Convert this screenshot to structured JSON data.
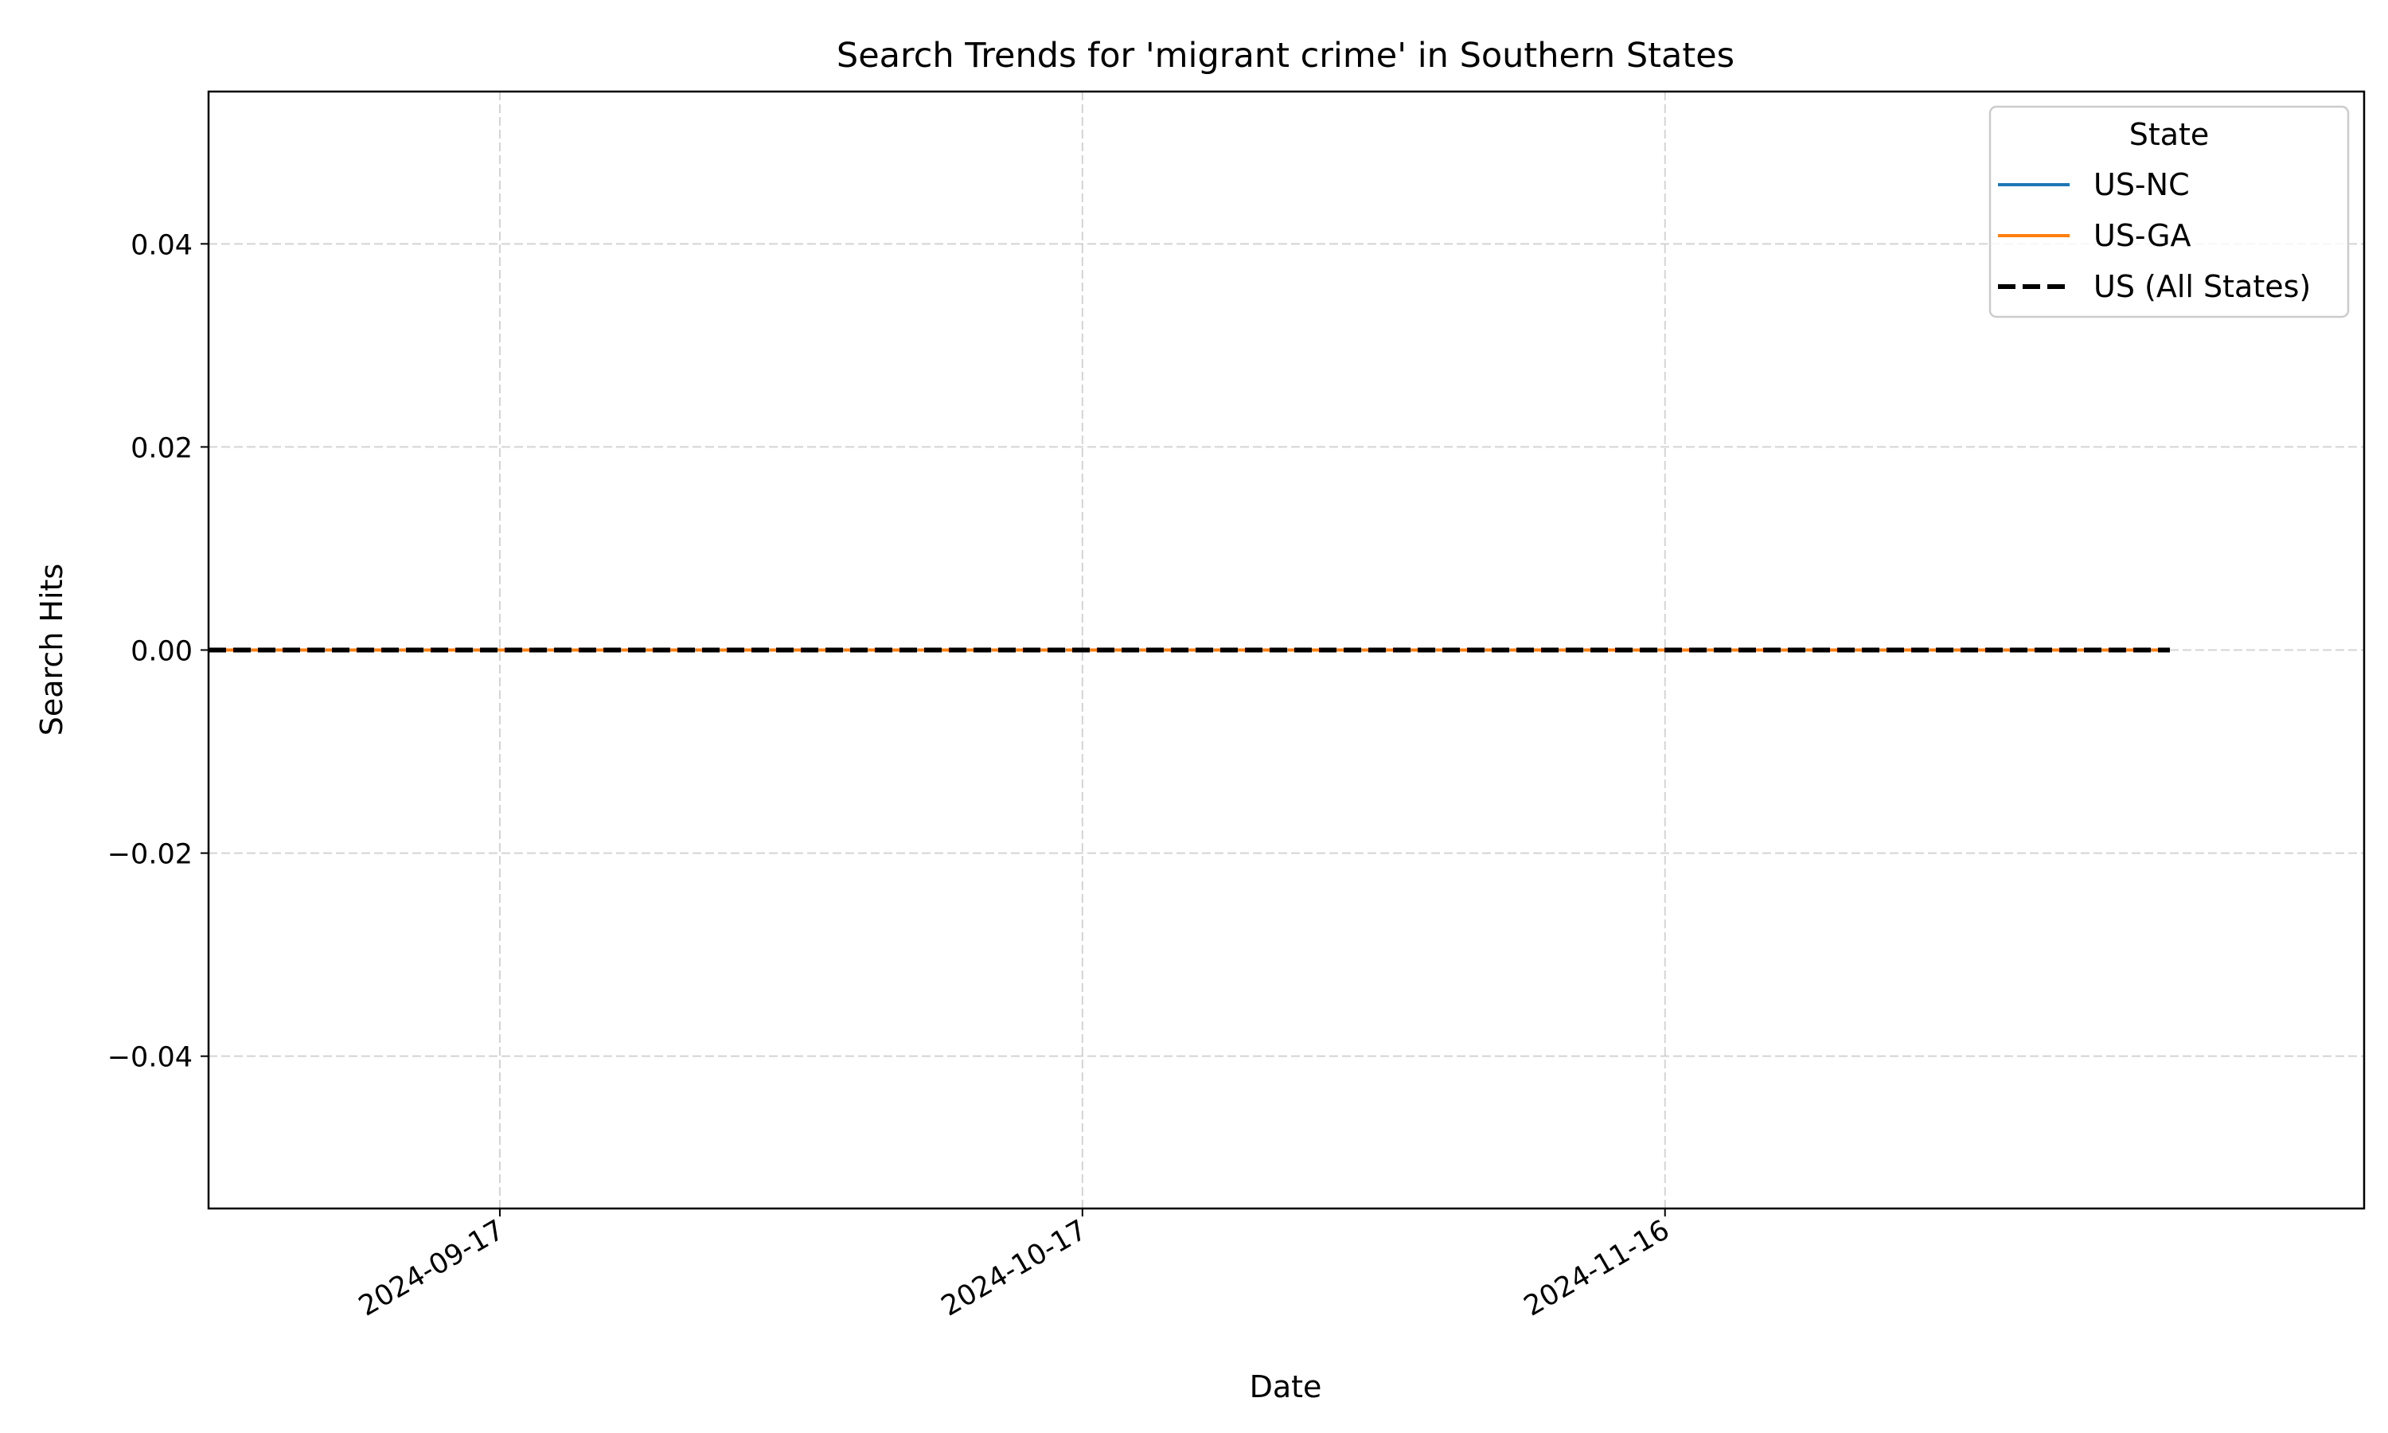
{
  "chart_data": {
    "type": "line",
    "title": "Search Trends for 'migrant crime' in Southern States",
    "xlabel": "Date",
    "ylabel": "Search Hits",
    "x_range": [
      "2024-09-02",
      "2024-12-22"
    ],
    "ylim": [
      -0.055,
      0.055
    ],
    "x_ticks": [
      "2024-09-17",
      "2024-10-17",
      "2024-11-16"
    ],
    "y_ticks": [
      {
        "value": -0.04,
        "label": "−0.04"
      },
      {
        "value": -0.02,
        "label": "−0.02"
      },
      {
        "value": 0.0,
        "label": "0.00"
      },
      {
        "value": 0.02,
        "label": "0.02"
      },
      {
        "value": 0.04,
        "label": "0.04"
      }
    ],
    "grid": true,
    "legend": {
      "title": "State",
      "position": "top-right"
    },
    "series": [
      {
        "name": "US-NC",
        "color": "#1f77b4",
        "style": "solid",
        "points": [
          {
            "x": "2024-09-02",
            "y": 0
          },
          {
            "x": "2024-12-12",
            "y": 0
          }
        ]
      },
      {
        "name": "US-GA",
        "color": "#ff7f0e",
        "style": "solid",
        "points": [
          {
            "x": "2024-09-02",
            "y": 0
          },
          {
            "x": "2024-12-12",
            "y": 0
          }
        ]
      },
      {
        "name": "US (All States)",
        "color": "#000000",
        "style": "dashed",
        "points": [
          {
            "x": "2024-09-02",
            "y": 0
          },
          {
            "x": "2024-12-12",
            "y": 0
          }
        ]
      }
    ]
  }
}
